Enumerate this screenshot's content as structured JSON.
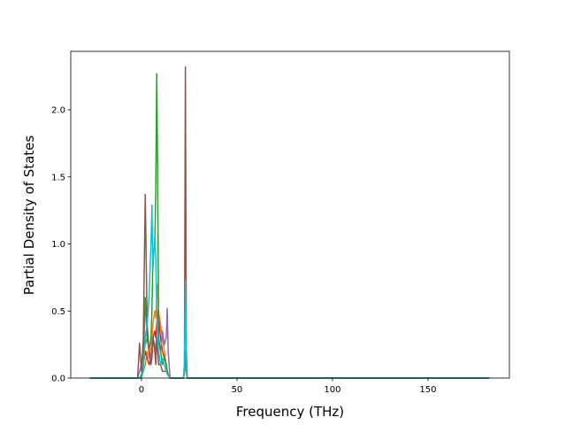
{
  "chart_data": {
    "type": "line",
    "xlabel": "Frequency (THz)",
    "ylabel": "Partial Density of States",
    "x": [
      -27,
      -2,
      -1,
      0,
      1,
      2,
      3,
      4,
      5,
      5.5,
      6,
      7,
      7.5,
      8,
      8.5,
      9,
      10,
      11,
      12,
      13,
      13.5,
      14,
      15,
      21,
      22,
      22.5,
      23,
      23.5,
      24,
      25,
      182
    ],
    "series": [
      {
        "color": "#ff7f0e",
        "values": [
          0,
          0,
          0,
          0.02,
          0.05,
          0.1,
          0.2,
          0.15,
          0.2,
          0.3,
          0.4,
          0.5,
          0.45,
          0.6,
          0.7,
          0.49,
          0.4,
          0.3,
          0.2,
          0.1,
          0.05,
          0.03,
          0,
          0,
          0,
          0.05,
          0.15,
          0.05,
          0,
          0,
          0
        ]
      },
      {
        "color": "#d62728",
        "values": [
          0,
          0,
          0,
          0.02,
          0.1,
          0.2,
          0.15,
          0.1,
          0.15,
          0.2,
          0.3,
          0.35,
          0.3,
          0.4,
          0.5,
          0.45,
          0.3,
          0.2,
          0.15,
          0.1,
          0.05,
          0.02,
          0,
          0,
          0,
          0.05,
          0.18,
          0.05,
          0,
          0,
          0
        ]
      },
      {
        "color": "#9467bd",
        "values": [
          0,
          0,
          0.05,
          0.1,
          0.2,
          0.25,
          0.3,
          0.2,
          0.15,
          0.2,
          0.3,
          0.25,
          0.2,
          0.3,
          0.25,
          0.3,
          0.2,
          0.35,
          0.25,
          0.3,
          0.52,
          0.2,
          0,
          0,
          0,
          0.05,
          0.2,
          0.05,
          0,
          0,
          0
        ]
      },
      {
        "color": "#2ca02c",
        "values": [
          0,
          0,
          0,
          0.02,
          0.1,
          0.6,
          0.3,
          0.2,
          0.3,
          0.5,
          0.9,
          1.0,
          1.4,
          2.27,
          1.53,
          0.3,
          0.2,
          0.1,
          0.15,
          0.1,
          0.05,
          0.02,
          0,
          0,
          0,
          0.05,
          0.2,
          0.05,
          0,
          0,
          0
        ]
      },
      {
        "color": "#8c564b",
        "values": [
          0,
          0,
          0.26,
          0.05,
          0.3,
          1.37,
          0.4,
          0.2,
          0.1,
          0.15,
          0.3,
          0.2,
          0.1,
          0.3,
          0.2,
          0.1,
          0.1,
          0.05,
          0.05,
          0.05,
          0.05,
          0.02,
          0,
          0,
          0,
          0.1,
          2.32,
          0.2,
          0,
          0,
          0
        ]
      },
      {
        "color": "#17becf",
        "values": [
          0,
          0,
          0,
          0,
          0.05,
          0.3,
          0.4,
          0.6,
          1.0,
          1.29,
          0.8,
          1.07,
          0.9,
          0.5,
          0.3,
          0.2,
          0.1,
          0.15,
          0.1,
          0.05,
          0.03,
          0.02,
          0,
          0,
          0,
          0.1,
          0.73,
          0.1,
          0,
          0,
          0
        ]
      }
    ],
    "xlim": [
      -37,
      192.6
    ],
    "ylim": [
      0,
      2.436
    ],
    "xticks": [
      0,
      50,
      100,
      150
    ],
    "yticks": [
      {
        "value": 0,
        "label": "0.0"
      },
      0.5,
      {
        "value": 1,
        "label": "1.0"
      },
      1.5,
      {
        "value": 2,
        "label": "2.0"
      }
    ]
  }
}
